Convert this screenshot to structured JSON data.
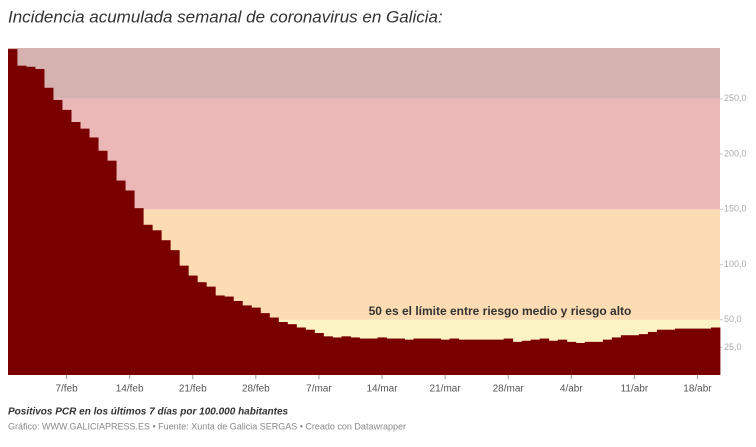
{
  "chart_data": {
    "type": "bar",
    "title": "Incidencia acumulada semanal de coronavirus en Galicia:",
    "annotation": "50 es el límite entre riesgo medio y riesgo alto",
    "note": "Positivos PCR en los últimos 7 días por 100.000 habitantes",
    "source": "Gráfico: WWW.GALICIAPRESS.ES • Fuente: Xunta de Galicia SERGAS • Creado con Datawrapper",
    "categories": [
      null,
      null,
      null,
      null,
      null,
      null,
      "7/feb",
      null,
      null,
      null,
      null,
      null,
      null,
      "14/feb",
      null,
      null,
      null,
      null,
      null,
      null,
      "21/feb",
      null,
      null,
      null,
      null,
      null,
      null,
      "28/feb",
      null,
      null,
      null,
      null,
      null,
      null,
      "7/mar",
      null,
      null,
      null,
      null,
      null,
      null,
      "14/mar",
      null,
      null,
      null,
      null,
      null,
      null,
      "21/mar",
      null,
      null,
      null,
      null,
      null,
      null,
      "28/mar",
      null,
      null,
      null,
      null,
      null,
      null,
      "4/abr",
      null,
      null,
      null,
      null,
      null,
      null,
      "11/abr",
      null,
      null,
      null,
      null,
      null,
      null,
      "18/abr",
      null,
      null
    ],
    "values": [
      295,
      280,
      279,
      277,
      260,
      249,
      240,
      229,
      223,
      215,
      203,
      194,
      176,
      167,
      151,
      136,
      131,
      122,
      113,
      99,
      90,
      84,
      80,
      72,
      71,
      67,
      63,
      61,
      56,
      52,
      48,
      46,
      43,
      41,
      38,
      35,
      34,
      35,
      34,
      33,
      33,
      34,
      33,
      33,
      32,
      33,
      33,
      33,
      32,
      33,
      32,
      32,
      32,
      32,
      32,
      33,
      30,
      31,
      32,
      33,
      31,
      32,
      30,
      29,
      30,
      30,
      32,
      34,
      36,
      36,
      37,
      39,
      41,
      41,
      42,
      42,
      42,
      42,
      43
    ],
    "color": "#7a0000",
    "ylim": [
      0,
      296
    ],
    "yticks": [
      {
        "value": 25,
        "label": "25,0"
      },
      {
        "value": 50,
        "label": "50,0"
      },
      {
        "value": 100,
        "label": "100,0"
      },
      {
        "value": 150,
        "label": "150,0"
      },
      {
        "value": 200,
        "label": "200,0"
      },
      {
        "value": 250,
        "label": "250,0"
      }
    ],
    "bands": [
      {
        "from": 0,
        "to": 50,
        "color": "#fdf4c6"
      },
      {
        "from": 50,
        "to": 150,
        "color": "#fcdcb2"
      },
      {
        "from": 150,
        "to": 250,
        "color": "#ecb8b7"
      },
      {
        "from": 250,
        "to": 296,
        "color": "#d5b1b0"
      }
    ]
  }
}
